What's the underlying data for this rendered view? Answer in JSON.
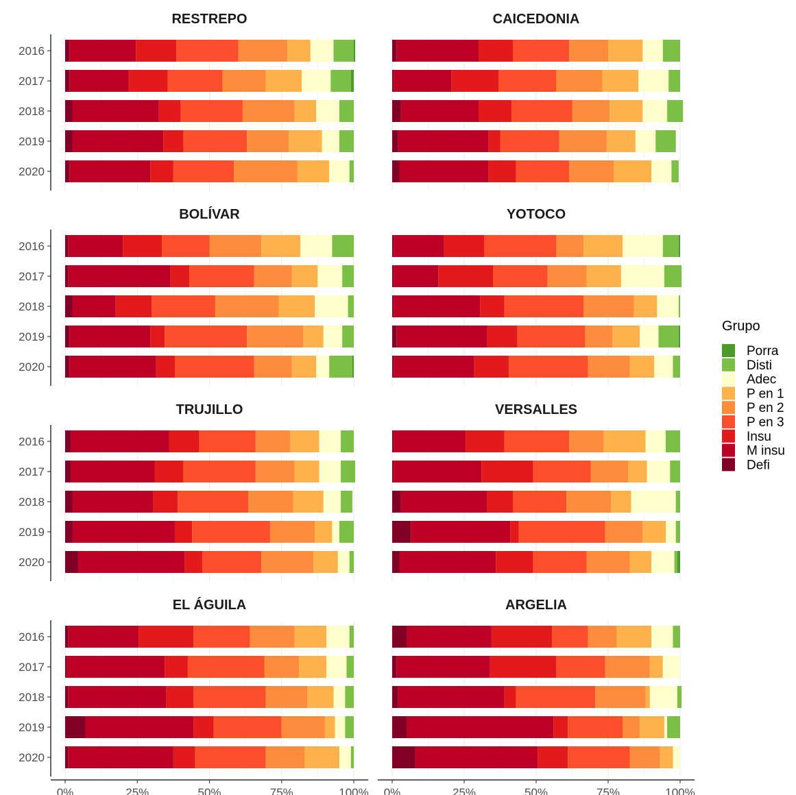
{
  "chart_data": {
    "type": "bar",
    "orientation": "horizontal-stacked-percent",
    "grid": "vertical",
    "legend": {
      "title": "Grupo",
      "placement": "right",
      "items": [
        {
          "name": "Porra",
          "color": "#4C9A2A"
        },
        {
          "name": "Disti",
          "color": "#7CBF47"
        },
        {
          "name": "Adec",
          "color": "#FFFFCC"
        },
        {
          "name": "P en 1",
          "color": "#FEB24C"
        },
        {
          "name": "P en 2",
          "color": "#FD8D3C"
        },
        {
          "name": "P en 3",
          "color": "#FC4E2A"
        },
        {
          "name": "Insu",
          "color": "#E31A1C"
        },
        {
          "name": "M insu",
          "color": "#BD0026"
        },
        {
          "name": "Defi",
          "color": "#800026"
        }
      ]
    },
    "stack_order": [
      "Defi",
      "M insu",
      "Insu",
      "P en 3",
      "P en 2",
      "P en 1",
      "Adec",
      "Disti",
      "Porra"
    ],
    "years": [
      "2016",
      "2017",
      "2018",
      "2019",
      "2020"
    ],
    "xticks": [
      0,
      25,
      50,
      75,
      100
    ],
    "xtick_labels": [
      "0%",
      "25%",
      "50%",
      "75%",
      "100%"
    ],
    "xlim": [
      0,
      100
    ],
    "panels": [
      {
        "title": "RESTREPO",
        "rows": [
          [
            1.5,
            23,
            14,
            21.5,
            17,
            8,
            8,
            7,
            0.5
          ],
          [
            1.5,
            20.5,
            13.5,
            19,
            15,
            12.5,
            10,
            7,
            1
          ],
          [
            2.5,
            30,
            7.5,
            21.5,
            18,
            7.5,
            8,
            5,
            0
          ],
          [
            2.5,
            31.5,
            7,
            22,
            14.5,
            11.5,
            6,
            5,
            0
          ],
          [
            1.5,
            28,
            8,
            21,
            22,
            11,
            7,
            1.5,
            0
          ]
        ]
      },
      {
        "title": "CAICEDONIA",
        "rows": [
          [
            1.5,
            28.5,
            12,
            19.5,
            13.5,
            12,
            7,
            6,
            0
          ],
          [
            0.5,
            20,
            16.5,
            20,
            16,
            12.5,
            10.5,
            4,
            0
          ],
          [
            3,
            27,
            11.5,
            21,
            13,
            11.5,
            8.5,
            5.5,
            0
          ],
          [
            2,
            31.5,
            4,
            20.5,
            16.5,
            10,
            7,
            7,
            0
          ],
          [
            2.5,
            31,
            9.5,
            18.5,
            15.5,
            13,
            7,
            2.5,
            0
          ]
        ]
      },
      {
        "title": "BOLÍVAR",
        "rows": [
          [
            1,
            19,
            13.5,
            16.5,
            18,
            13.5,
            11,
            7.5,
            0
          ],
          [
            1,
            35.5,
            6.5,
            22.5,
            13,
            9,
            8.5,
            4,
            0
          ],
          [
            2.5,
            15,
            12.5,
            22,
            22,
            12.5,
            11.5,
            2,
            0
          ],
          [
            1.5,
            28,
            5,
            28.5,
            19.5,
            7,
            6.5,
            4,
            0
          ],
          [
            1.5,
            30,
            6.5,
            27.5,
            13,
            8.5,
            4.5,
            8,
            0.5
          ]
        ]
      },
      {
        "title": "YOTOCO",
        "rows": [
          [
            0.5,
            17.5,
            14,
            25,
            9.5,
            13.5,
            14,
            5.5,
            0.5
          ],
          [
            0.5,
            15.5,
            19,
            19,
            13.5,
            12,
            15,
            6,
            0
          ],
          [
            0.5,
            30,
            8.5,
            27.5,
            17.5,
            8,
            7.5,
            0.5,
            0
          ],
          [
            1.5,
            31.5,
            10.5,
            23.5,
            9.5,
            9.5,
            6.5,
            7,
            0.5
          ],
          [
            0.5,
            28,
            12,
            27.5,
            14.5,
            8.5,
            6.5,
            2.5,
            0
          ]
        ]
      },
      {
        "title": "TRUJILLO",
        "rows": [
          [
            2,
            34,
            10.5,
            19.5,
            12,
            10,
            7.5,
            4.5,
            0
          ],
          [
            2,
            29,
            10,
            25,
            13.5,
            8.5,
            7.5,
            5,
            0
          ],
          [
            2.5,
            28,
            8.5,
            24.5,
            15.5,
            10.5,
            6,
            4,
            0
          ],
          [
            2.5,
            35.5,
            6,
            27,
            15.5,
            6,
            2.5,
            5,
            0
          ],
          [
            4.5,
            37,
            6,
            20.5,
            18,
            8.5,
            4,
            1.5,
            0
          ]
        ]
      },
      {
        "title": "VERSALLES",
        "rows": [
          [
            0.5,
            25,
            13.5,
            22.5,
            12,
            14.5,
            7,
            5,
            0
          ],
          [
            0.5,
            30.5,
            18,
            20,
            13,
            6.5,
            8,
            3.5,
            0
          ],
          [
            3,
            30,
            9,
            18.5,
            15.5,
            7,
            15.5,
            1.5,
            0
          ],
          [
            6.5,
            34.5,
            3,
            30,
            13,
            8,
            3.5,
            1.5,
            0
          ],
          [
            2.5,
            33.5,
            13,
            18.5,
            15,
            7.5,
            8,
            1,
            1
          ]
        ]
      },
      {
        "title": "EL ÁGUILA",
        "rows": [
          [
            1,
            24.5,
            19,
            19.5,
            15.5,
            11,
            8,
            1.5,
            0
          ],
          [
            0.5,
            34,
            8,
            26.5,
            12,
            9.5,
            7,
            2.5,
            0
          ],
          [
            1,
            34,
            9.5,
            25,
            14.5,
            9,
            4,
            3,
            0
          ],
          [
            7,
            37.5,
            7,
            23.5,
            15,
            3.5,
            3.5,
            3,
            0
          ],
          [
            1,
            36.5,
            7.5,
            24.5,
            13.5,
            12,
            4,
            1,
            0
          ]
        ]
      },
      {
        "title": "ARGELIA",
        "rows": [
          [
            5,
            29.5,
            21,
            12.5,
            10,
            12,
            7.5,
            2.5,
            0
          ],
          [
            1.5,
            32.5,
            23,
            17,
            15.5,
            4.5,
            6,
            0,
            0
          ],
          [
            2,
            37,
            4,
            27.5,
            17.5,
            1.5,
            9.5,
            1.5,
            0
          ],
          [
            5,
            51,
            5,
            19,
            6,
            8.5,
            1,
            4.5,
            0
          ],
          [
            8,
            42.5,
            10.5,
            21.5,
            10.5,
            4.5,
            2.5,
            0,
            0
          ]
        ]
      }
    ]
  }
}
